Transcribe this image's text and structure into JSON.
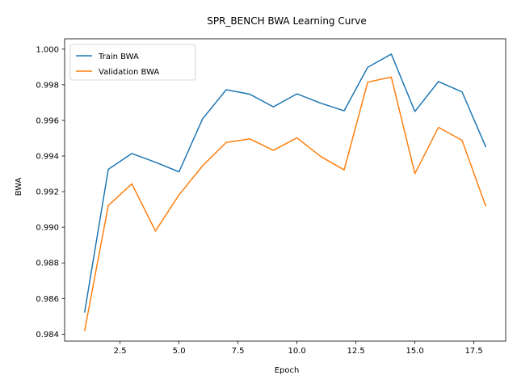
{
  "chart_data": {
    "type": "line",
    "title": "SPR_BENCH BWA Learning Curve",
    "xlabel": "Epoch",
    "ylabel": "BWA",
    "x": [
      1,
      2,
      3,
      4,
      5,
      6,
      7,
      8,
      9,
      10,
      11,
      12,
      13,
      14,
      15,
      16,
      17,
      18
    ],
    "xlim": [
      0.15,
      18.85
    ],
    "ylim": [
      0.98361,
      1.00058
    ],
    "xticks": [
      2.5,
      5.0,
      7.5,
      10.0,
      12.5,
      15.0,
      17.5
    ],
    "xtick_labels": [
      "2.5",
      "5.0",
      "7.5",
      "10.0",
      "12.5",
      "15.0",
      "17.5"
    ],
    "yticks": [
      0.984,
      0.986,
      0.988,
      0.99,
      0.992,
      0.994,
      0.996,
      0.998,
      1.0
    ],
    "ytick_labels": [
      "0.984",
      "0.986",
      "0.988",
      "0.990",
      "0.992",
      "0.994",
      "0.996",
      "0.998",
      "1.000"
    ],
    "grid": false,
    "legend_position": "upper-left",
    "series": [
      {
        "name": "Train BWA",
        "color": "#1f77b4",
        "values": [
          0.98525,
          0.99325,
          0.99414,
          0.99365,
          0.99311,
          0.99609,
          0.99772,
          0.99747,
          0.99676,
          0.99749,
          0.99697,
          0.99654,
          0.99898,
          0.99972,
          0.9965,
          0.99818,
          0.9976,
          0.99453
        ]
      },
      {
        "name": "Validation BWA",
        "color": "#ff7f0e",
        "values": [
          0.98421,
          0.99122,
          0.99244,
          0.98979,
          0.99182,
          0.99345,
          0.99476,
          0.99496,
          0.99432,
          0.99502,
          0.99398,
          0.99322,
          0.99815,
          0.99843,
          0.99301,
          0.99561,
          0.99488,
          0.9912
        ]
      }
    ]
  }
}
